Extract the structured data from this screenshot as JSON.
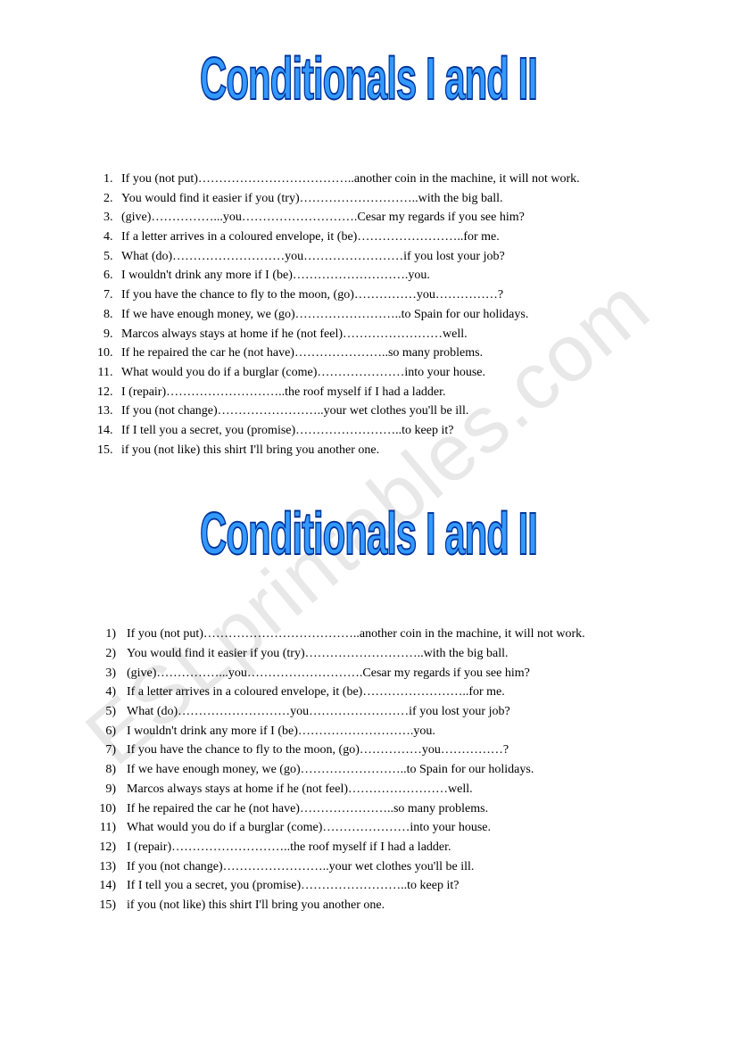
{
  "watermark_text": "ESLprintables.com",
  "title_text": "Conditionals I and II",
  "title_style": {
    "font_family": "Arial Narrow, Arial, sans-serif",
    "font_size": 42,
    "fill_color": "#3399ff",
    "outline_color": "#003399",
    "outline_width": 1.2,
    "scale_y": 1.6,
    "letter_spacing": -1
  },
  "colors": {
    "background": "#ffffff",
    "text": "#000000",
    "watermark": "#e8e8e8"
  },
  "exercise_items": [
    "If you (not put)………………………………..another coin in the machine, it will not work.",
    "You would find it easier if you (try)………………………..with the big ball.",
    "(give)……………...you……………………….Cesar my regards if you see him?",
    "If a letter arrives in a coloured envelope, it (be)……………………..for me.",
    "What (do)………………………you……………………if you lost your job?",
    "I wouldn't drink any more if I (be)……………………….you.",
    "If you have the chance to fly to the moon, (go)……………you……………?",
    "If we have enough money, we (go)……………………..to Spain for our holidays.",
    "Marcos always stays at home if he (not feel)……………………well.",
    "If he repaired the car he (not have)…………………..so many problems.",
    "What would you do if a burglar (come)…………………into your house.",
    "I (repair)………………………..the roof myself if I had a ladder.",
    "If you (not change)……………………..your wet clothes you'll be ill.",
    "If I tell you a secret, you (promise)……………………..to keep it?",
    "if you (not like) this shirt I'll bring you another one."
  ]
}
